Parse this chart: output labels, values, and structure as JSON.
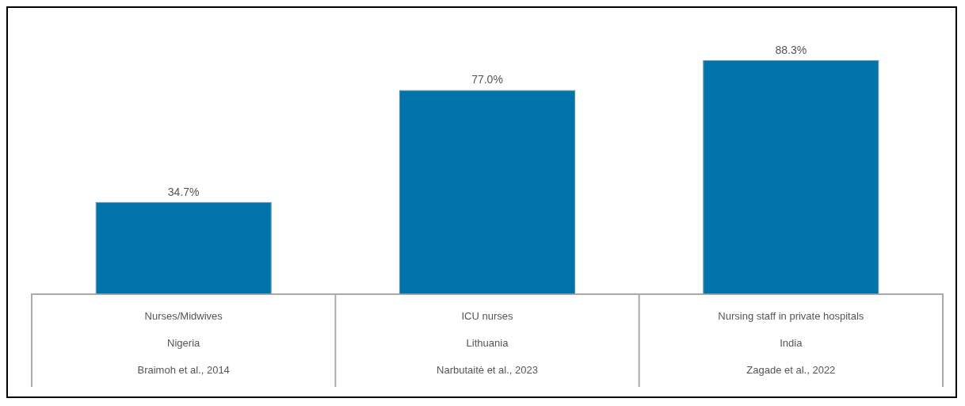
{
  "chart_data": {
    "type": "bar",
    "categories": [
      "Nurses/Midwives\nNigeria\nBraimoh et al., 2014",
      "ICU nurses\nLithuania\nNarbutaitė et al., 2023",
      "Nursing staff in private hospitals\nIndia\nZagade et al., 2022"
    ],
    "values": [
      34.7,
      77.0,
      88.3
    ],
    "color": "#0073a8",
    "value_labels": [
      "34.7%",
      "77.0%",
      "88.3%"
    ],
    "legend": false
  }
}
